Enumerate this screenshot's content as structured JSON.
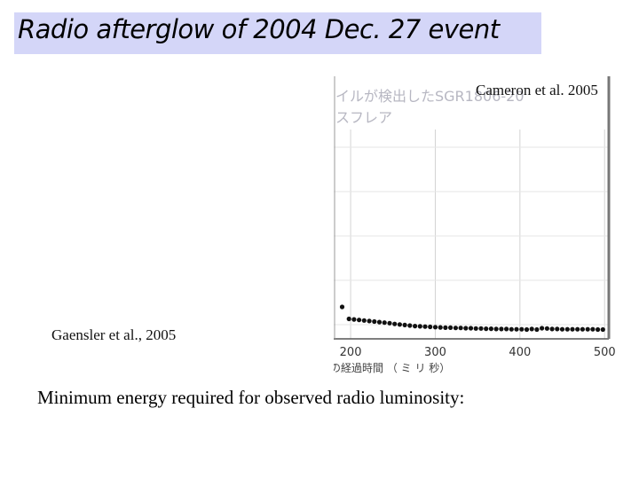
{
  "slide": {
    "title": "Radio afterglow of 2004 Dec. 27 event",
    "credit_right": "Cameron et al. 2005",
    "credit_left": "Gaensler et al., 2005",
    "body_text": "Minimum energy required for observed radio luminosity:"
  },
  "figure": {
    "jp_line1": "イルが検出したSGR1806-20",
    "jp_line2": "スフレア",
    "xlabel": "の経過時間 （ ミ リ 秒）"
  },
  "chart_data": {
    "type": "scatter",
    "title": "",
    "xlabel": "の経過時間 （ ミ リ 秒）",
    "ylabel": "",
    "xlim": [
      180,
      505
    ],
    "x_ticks": [
      "200",
      "300",
      "400",
      "500"
    ],
    "grid": true,
    "series": [
      {
        "x": [
          190,
          198,
          204,
          210,
          216,
          222,
          228,
          234,
          240,
          246,
          252,
          258,
          264,
          270,
          276,
          282,
          288,
          294,
          300,
          306,
          312,
          318,
          324,
          330,
          336,
          342,
          348,
          354,
          360,
          366,
          372,
          378,
          384,
          390,
          396,
          402,
          408,
          414,
          420,
          426,
          432,
          438,
          444,
          450,
          456,
          462,
          468,
          474,
          480,
          486,
          492,
          498
        ],
        "y": [
          1.0,
          0.55,
          0.53,
          0.51,
          0.49,
          0.47,
          0.45,
          0.43,
          0.41,
          0.39,
          0.36,
          0.34,
          0.32,
          0.3,
          0.28,
          0.27,
          0.26,
          0.25,
          0.24,
          0.23,
          0.22,
          0.22,
          0.21,
          0.21,
          0.2,
          0.2,
          0.19,
          0.19,
          0.18,
          0.18,
          0.17,
          0.17,
          0.17,
          0.16,
          0.16,
          0.16,
          0.15,
          0.17,
          0.15,
          0.2,
          0.19,
          0.17,
          0.17,
          0.16,
          0.16,
          0.16,
          0.16,
          0.16,
          0.16,
          0.16,
          0.15,
          0.15
        ]
      }
    ]
  },
  "colors": {
    "title_bar": "#d4d6f8",
    "data_points": "#111111",
    "grid": "#d3d3d3"
  }
}
